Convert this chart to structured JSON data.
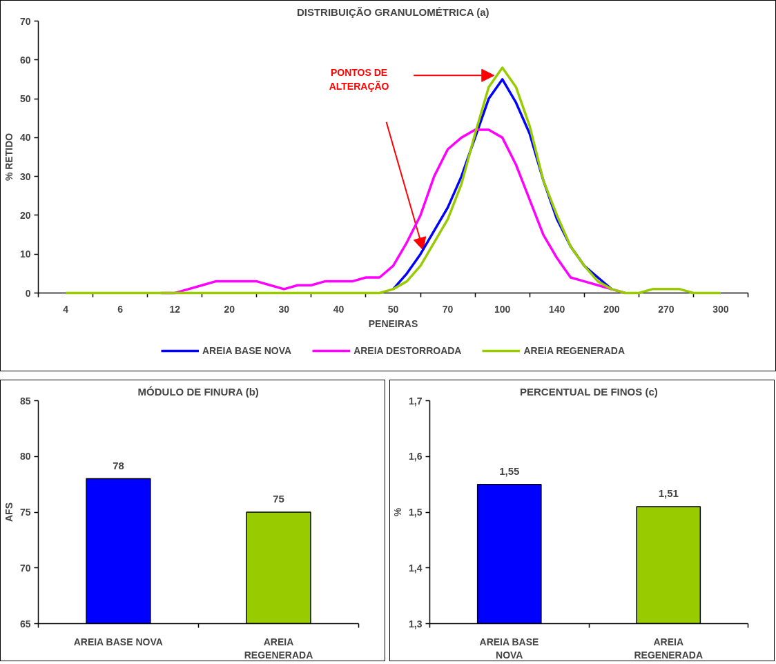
{
  "chart_data": [
    {
      "type": "line",
      "title": "DISTRIBUIÇÃO GRANULOMÉTRICA (a)",
      "xlabel": "PENEIRAS",
      "ylabel": "% RETIDO",
      "categories": [
        "4",
        null,
        null,
        null,
        "6",
        null,
        null,
        null,
        "12",
        null,
        null,
        null,
        "20",
        null,
        null,
        null,
        "30",
        null,
        null,
        null,
        "40",
        null,
        null,
        null,
        "50",
        null,
        null,
        null,
        "70",
        null,
        null,
        null,
        "100",
        null,
        null,
        null,
        "140",
        null,
        null,
        null,
        "200",
        null,
        null,
        null,
        "270",
        null,
        null,
        null,
        "300"
      ],
      "series": [
        {
          "name": "AREIA BASE NOVA",
          "color": "#0000ff",
          "values": [
            null,
            null,
            null,
            null,
            null,
            null,
            null,
            null,
            null,
            null,
            null,
            null,
            null,
            null,
            null,
            null,
            null,
            null,
            null,
            null,
            null,
            null,
            null,
            null,
            1,
            5,
            10,
            16,
            22,
            30,
            40,
            50,
            55,
            49,
            41,
            29,
            19,
            12,
            7,
            4,
            1,
            null,
            null,
            null,
            null,
            null,
            null,
            null,
            null
          ]
        },
        {
          "name": "AREIA DESTORROADA",
          "color": "#ff00ff",
          "values": [
            null,
            null,
            null,
            null,
            null,
            null,
            null,
            0,
            0,
            1,
            2,
            3,
            3,
            3,
            3,
            2,
            1,
            2,
            2,
            3,
            3,
            3,
            4,
            4,
            7,
            13,
            20,
            30,
            37,
            40,
            42,
            42,
            40,
            33,
            24,
            15,
            9,
            4,
            3,
            2,
            1,
            0,
            null,
            null,
            null,
            null,
            null,
            null,
            null
          ]
        },
        {
          "name": "AREIA REGENERADA",
          "color": "#99cc00",
          "values": [
            0,
            0,
            0,
            0,
            0,
            0,
            0,
            0,
            0,
            0,
            0,
            0,
            0,
            0,
            0,
            0,
            0,
            0,
            0,
            0,
            0,
            0,
            0,
            0,
            1,
            3,
            7,
            13,
            19,
            28,
            41,
            53,
            58,
            53,
            43,
            29,
            20,
            12,
            7,
            3,
            1,
            0,
            0,
            1,
            1,
            1,
            0,
            0,
            0
          ]
        }
      ],
      "ylim": [
        0,
        70
      ],
      "yticks": [
        0,
        10,
        20,
        30,
        40,
        50,
        60,
        70
      ],
      "grid": false,
      "legend": "bottom",
      "line_style": "solid",
      "annotations": [
        "PONTOS DE ALTERAÇÃO"
      ]
    },
    {
      "type": "bar",
      "title": "MÓDULO DE FINURA (b)",
      "ylabel": "AFS",
      "categories": [
        "AREIA BASE NOVA",
        "AREIA REGENERADA"
      ],
      "values": [
        78,
        75
      ],
      "colors": [
        "#0000ff",
        "#99cc00"
      ],
      "ylim": [
        65,
        85
      ],
      "yticks": [
        65,
        70,
        75,
        80,
        85
      ],
      "grid": false,
      "data_labels": true
    },
    {
      "type": "bar",
      "title": "PERCENTUAL DE FINOS (c)",
      "ylabel": "%",
      "categories": [
        "AREIA BASE NOVA",
        "AREIA REGENERADA"
      ],
      "values": [
        1.55,
        1.51
      ],
      "colors": [
        "#0000ff",
        "#99cc00"
      ],
      "ylim": [
        1.3,
        1.7
      ],
      "yticks": [
        {
          "value": 1.3,
          "label": "1,3"
        },
        {
          "value": 1.4,
          "label": "1,4"
        },
        {
          "value": 1.5,
          "label": "1,5"
        },
        {
          "value": 1.6,
          "label": "1,6"
        },
        {
          "value": 1.7,
          "label": "1,7"
        }
      ],
      "grid": false,
      "value_labels": [
        "1,55",
        "1,51"
      ]
    }
  ]
}
